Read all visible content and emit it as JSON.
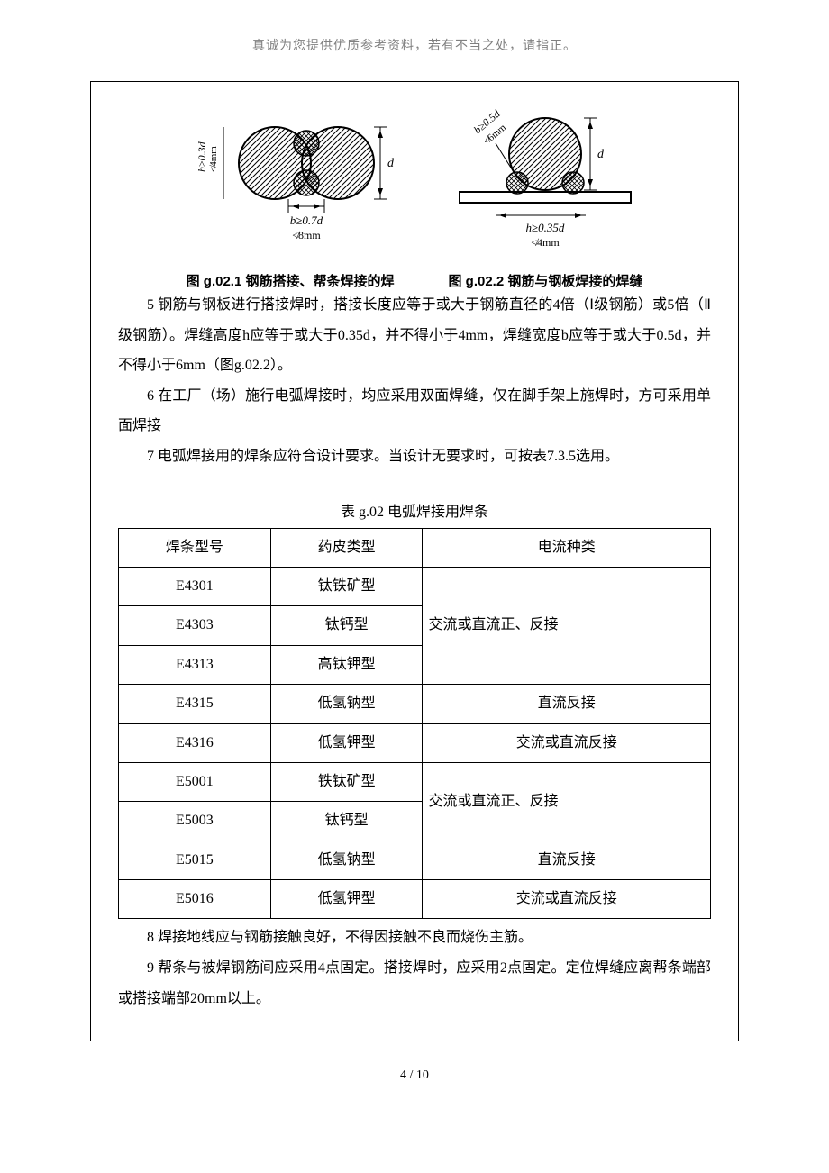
{
  "header_note": "真诚为您提供优质参考资料，若有不当之处，请指正。",
  "figures": {
    "fig1": {
      "caption": "图 g.02.1 钢筋搭接、帮条焊接的焊",
      "h_label": "h≥0.3d",
      "h_sub": "≮4mm",
      "d_label": "d",
      "b_label": "b≥0.7d",
      "b_sub": "≮8mm"
    },
    "fig2": {
      "caption": "图 g.02.2 钢筋与钢板焊接的焊缝",
      "b_label": "b≥0.5d",
      "b_sub": "≮6mm",
      "d_label": "d",
      "h_label": "h≥0.35d",
      "h_sub": "≮4mm"
    }
  },
  "paragraphs": {
    "p5": "5 钢筋与钢板进行搭接焊时，搭接长度应等于或大于钢筋直径的4倍（Ⅰ级钢筋）或5倍（Ⅱ级钢筋）。焊缝高度h应等于或大于0.35d，并不得小于4mm，焊缝宽度b应等于或大于0.5d，并不得小于6mm（图g.02.2）。",
    "p6": "6 在工厂（场）施行电弧焊接时，均应采用双面焊缝，仅在脚手架上施焊时，方可采用单面焊接",
    "p7": "7 电弧焊接用的焊条应符合设计要求。当设计无要求时，可按表7.3.5选用。",
    "p8": "8 焊接地线应与钢筋接触良好，不得因接触不良而烧伤主筋。",
    "p9": "9 帮条与被焊钢筋间应采用4点固定。搭接焊时，应采用2点固定。定位焊缝应离帮条端部或搭接端部20mm以上。"
  },
  "table": {
    "title": "表 g.02 电弧焊接用焊条",
    "headers": [
      "焊条型号",
      "药皮类型",
      "电流种类"
    ],
    "groups": [
      {
        "rows": [
          {
            "code": "E4301",
            "type": "钛铁矿型"
          },
          {
            "code": "E4303",
            "type": "钛钙型"
          },
          {
            "code": "E4313",
            "type": "高钛钾型"
          }
        ],
        "current": "交流或直流正、反接"
      },
      {
        "rows": [
          {
            "code": "E4315",
            "type": "低氢钠型"
          }
        ],
        "current": "直流反接"
      },
      {
        "rows": [
          {
            "code": "E4316",
            "type": "低氢钾型"
          }
        ],
        "current": "交流或直流反接"
      },
      {
        "rows": [
          {
            "code": "E5001",
            "type": "铁钛矿型"
          },
          {
            "code": "E5003",
            "type": "钛钙型"
          }
        ],
        "current": "交流或直流正、反接"
      },
      {
        "rows": [
          {
            "code": "E5015",
            "type": "低氢钠型"
          }
        ],
        "current": "直流反接"
      },
      {
        "rows": [
          {
            "code": "E5016",
            "type": "低氢钾型"
          }
        ],
        "current": "交流或直流反接"
      }
    ]
  },
  "footer": "4 / 10",
  "colors": {
    "text": "#000000",
    "header_gray": "#808080",
    "border": "#000000",
    "background": "#ffffff"
  }
}
